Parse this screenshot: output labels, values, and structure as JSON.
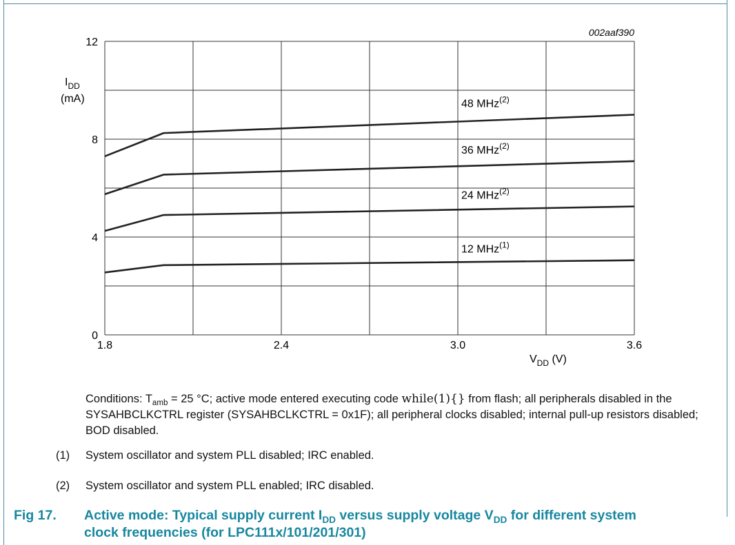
{
  "chart_data": {
    "type": "line",
    "figure_id": "002aaf390",
    "ylabel_main": "I",
    "ylabel_sub": "DD",
    "ylabel_unit": "(mA)",
    "xlabel_main": "V",
    "xlabel_sub": "DD",
    "xlabel_unit": " (V)",
    "xlim": [
      1.8,
      3.6
    ],
    "ylim": [
      0,
      12
    ],
    "x_ticks": [
      1.8,
      2.4,
      3.0,
      3.6
    ],
    "x_tick_labels": [
      "1.8",
      "2.4",
      "3.0",
      "3.6"
    ],
    "y_ticks": [
      0,
      4,
      8,
      12
    ],
    "y_tick_labels": [
      "0",
      "4",
      "8",
      "12"
    ],
    "x_grid": [
      1.8,
      2.1,
      2.4,
      2.7,
      3.0,
      3.3,
      3.6
    ],
    "y_grid": [
      0,
      2,
      4,
      6,
      8,
      10,
      12
    ],
    "grid": true,
    "series": [
      {
        "name": "48 MHz",
        "sup": "(2)",
        "x": [
          1.8,
          2.0,
          3.6
        ],
        "y": [
          7.3,
          8.25,
          9.0
        ]
      },
      {
        "name": "36 MHz",
        "sup": "(2)",
        "x": [
          1.8,
          2.0,
          3.6
        ],
        "y": [
          5.75,
          6.55,
          7.1
        ]
      },
      {
        "name": "24 MHz",
        "sup": "(2)",
        "x": [
          1.8,
          2.0,
          3.6
        ],
        "y": [
          4.25,
          4.9,
          5.25
        ]
      },
      {
        "name": "12 MHz",
        "sup": "(1)",
        "x": [
          1.8,
          2.0,
          3.6
        ],
        "y": [
          2.55,
          2.85,
          3.05
        ]
      }
    ]
  },
  "conditions": {
    "prefix": "Conditions: T",
    "tamb_sub": "amb",
    "part1": " = 25 °C; active mode entered executing code ",
    "code": "while(1){}",
    "part2": " from flash; all peripherals disabled in the SYSAHBCLKCTRL register (SYSAHBCLKCTRL = 0x1F); all peripheral clocks disabled; internal pull-up resistors disabled; BOD disabled."
  },
  "notes": [
    {
      "num": "(1)",
      "text": "System oscillator and system PLL disabled; IRC enabled."
    },
    {
      "num": "(2)",
      "text": "System oscillator and system PLL enabled; IRC disabled."
    }
  ],
  "caption": {
    "fig": "Fig 17.",
    "t1": "Active mode: Typical supply current I",
    "s1": "DD",
    "t2": " versus supply voltage V",
    "s2": "DD",
    "t3": " for different system clock frequencies (for LPC111x/101/201/301)"
  },
  "colors": {
    "accent": "#17879f",
    "frame": "#4d8aa5",
    "line": "#222222",
    "grid": "#333333"
  }
}
